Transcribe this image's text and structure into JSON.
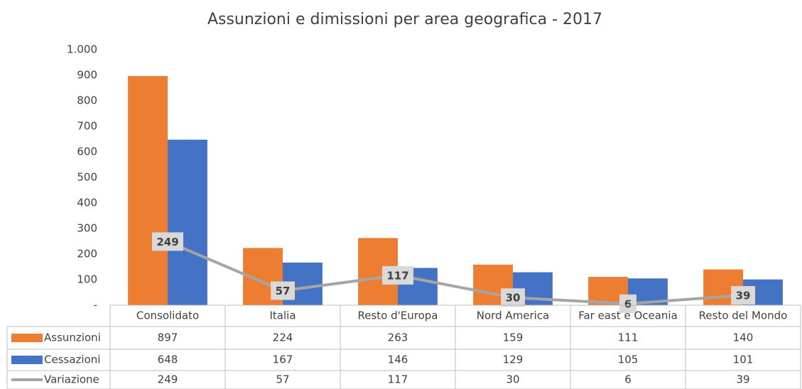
{
  "chart_data": {
    "type": "bar",
    "title": "Assunzioni e dimissioni per area geografica - 2017",
    "categories": [
      "Consolidato",
      "Italia",
      "Resto d'Europa",
      "Nord America",
      "Far east e Oceania",
      "Resto del Mondo"
    ],
    "series": [
      {
        "name": "Assunzioni",
        "color": "#ed7d31",
        "type": "bar",
        "values": [
          897,
          224,
          263,
          159,
          111,
          140
        ]
      },
      {
        "name": "Cessazioni",
        "color": "#4472c4",
        "type": "bar",
        "values": [
          648,
          167,
          146,
          129,
          105,
          101
        ]
      },
      {
        "name": "Variazione",
        "color": "#a5a5a5",
        "type": "line",
        "values": [
          249,
          57,
          117,
          30,
          6,
          39
        ]
      }
    ],
    "ylim": [
      0,
      1000
    ],
    "yticks": [
      {
        "value": 0,
        "label": "-"
      },
      100,
      200,
      300,
      400,
      500,
      600,
      700,
      800,
      900,
      {
        "value": 1000,
        "label": "1.000"
      }
    ],
    "grid": false,
    "data_table": true
  }
}
